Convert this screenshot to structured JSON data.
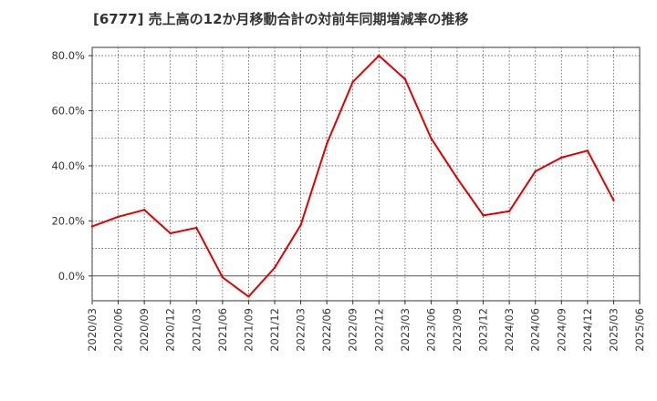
{
  "title": "[6777]  売上高の12か月移動合計の対前年同期増減率の推移",
  "colors": {
    "line": "#e00000",
    "grid": "#555555",
    "axis": "#333333",
    "zero_line": "#555555"
  },
  "chart_data": {
    "type": "line",
    "title": "[6777]  売上高の12か月移動合計の対前年同期増減率の推移",
    "xlabel": "",
    "ylabel": "",
    "ylim": [
      -9,
      83
    ],
    "yticks": [
      0,
      20,
      40,
      60,
      80
    ],
    "ytick_labels": [
      "0.0%",
      "20.0%",
      "40.0%",
      "60.0%",
      "80.0%"
    ],
    "grid": true,
    "categories": [
      "2020/03",
      "2020/06",
      "2020/09",
      "2020/12",
      "2021/03",
      "2021/06",
      "2021/09",
      "2021/12",
      "2022/03",
      "2022/06",
      "2022/09",
      "2022/12",
      "2023/03",
      "2023/06",
      "2023/09",
      "2023/12",
      "2024/03",
      "2024/06",
      "2024/09",
      "2024/12",
      "2025/03",
      "2025/06"
    ],
    "series": [
      {
        "name": "対前年同期増減率",
        "values": [
          18.0,
          21.5,
          24.0,
          15.5,
          17.5,
          -0.5,
          -7.5,
          3.0,
          18.5,
          48.0,
          70.5,
          80.0,
          71.5,
          50.0,
          35.5,
          22.0,
          23.5,
          38.0,
          43.0,
          45.5,
          27.5,
          null
        ]
      }
    ]
  }
}
